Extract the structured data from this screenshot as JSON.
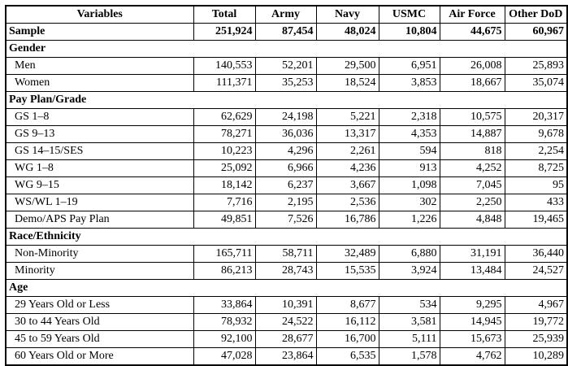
{
  "table": {
    "columns": [
      "Variables",
      "Total",
      "Army",
      "Navy",
      "USMC",
      "Air Force",
      "Other DoD"
    ],
    "rows": [
      {
        "type": "sample",
        "label": "Sample",
        "values": [
          "251,924",
          "87,454",
          "48,024",
          "10,804",
          "44,675",
          "60,967"
        ]
      },
      {
        "type": "section",
        "label": "Gender"
      },
      {
        "type": "data",
        "label": "Men",
        "values": [
          "140,553",
          "52,201",
          "29,500",
          "6,951",
          "26,008",
          "25,893"
        ]
      },
      {
        "type": "data",
        "label": "Women",
        "values": [
          "111,371",
          "35,253",
          "18,524",
          "3,853",
          "18,667",
          "35,074"
        ]
      },
      {
        "type": "section",
        "label": "Pay Plan/Grade"
      },
      {
        "type": "data",
        "label": "GS 1–8",
        "values": [
          "62,629",
          "24,198",
          "5,221",
          "2,318",
          "10,575",
          "20,317"
        ]
      },
      {
        "type": "data",
        "label": "GS 9–13",
        "values": [
          "78,271",
          "36,036",
          "13,317",
          "4,353",
          "14,887",
          "9,678"
        ]
      },
      {
        "type": "data",
        "label": "GS 14–15/SES",
        "values": [
          "10,223",
          "4,296",
          "2,261",
          "594",
          "818",
          "2,254"
        ]
      },
      {
        "type": "data",
        "label": "WG 1–8",
        "values": [
          "25,092",
          "6,966",
          "4,236",
          "913",
          "4,252",
          "8,725"
        ]
      },
      {
        "type": "data",
        "label": "WG 9–15",
        "values": [
          "18,142",
          "6,237",
          "3,667",
          "1,098",
          "7,045",
          "95"
        ]
      },
      {
        "type": "data",
        "label": "WS/WL 1–19",
        "values": [
          "7,716",
          "2,195",
          "2,536",
          "302",
          "2,250",
          "433"
        ]
      },
      {
        "type": "data",
        "label": "Demo/APS Pay Plan",
        "values": [
          "49,851",
          "7,526",
          "16,786",
          "1,226",
          "4,848",
          "19,465"
        ]
      },
      {
        "type": "section",
        "label": "Race/Ethnicity"
      },
      {
        "type": "data",
        "label": "Non-Minority",
        "values": [
          "165,711",
          "58,711",
          "32,489",
          "6,880",
          "31,191",
          "36,440"
        ]
      },
      {
        "type": "data",
        "label": "Minority",
        "values": [
          "86,213",
          "28,743",
          "15,535",
          "3,924",
          "13,484",
          "24,527"
        ]
      },
      {
        "type": "section",
        "label": "Age"
      },
      {
        "type": "data",
        "label": "29 Years Old or Less",
        "values": [
          "33,864",
          "10,391",
          "8,677",
          "534",
          "9,295",
          "4,967"
        ]
      },
      {
        "type": "data",
        "label": "30 to 44 Years Old",
        "values": [
          "78,932",
          "24,522",
          "16,112",
          "3,581",
          "14,945",
          "19,772"
        ]
      },
      {
        "type": "data",
        "label": "45 to 59 Years Old",
        "values": [
          "92,100",
          "28,677",
          "16,700",
          "5,111",
          "15,673",
          "25,939"
        ]
      },
      {
        "type": "data",
        "label": "60 Years Old or More",
        "values": [
          "47,028",
          "23,864",
          "6,535",
          "1,578",
          "4,762",
          "10,289"
        ]
      }
    ]
  },
  "colors": {
    "border": "#000000",
    "text": "#000000",
    "background": "#ffffff"
  }
}
